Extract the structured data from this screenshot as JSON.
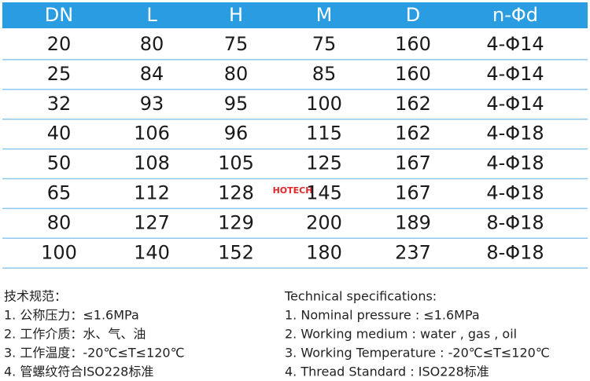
{
  "table": {
    "header": [
      "DN",
      "L",
      "H",
      "M",
      "D",
      "n-Φd"
    ],
    "rows": [
      [
        "20",
        "80",
        "75",
        "75",
        "160",
        "4-Φ14"
      ],
      [
        "25",
        "84",
        "80",
        "85",
        "160",
        "4-Φ14"
      ],
      [
        "32",
        "93",
        "95",
        "100",
        "162",
        "4-Φ14"
      ],
      [
        "40",
        "106",
        "96",
        "115",
        "162",
        "4-Φ18"
      ],
      [
        "50",
        "108",
        "105",
        "125",
        "167",
        "4-Φ18"
      ],
      [
        "65",
        "112",
        "128",
        "145",
        "167",
        "4-Φ18"
      ],
      [
        "80",
        "127",
        "129",
        "200",
        "189",
        "8-Φ18"
      ],
      [
        "100",
        "140",
        "152",
        "180",
        "237",
        "8-Φ18"
      ]
    ]
  },
  "watermark": "HOTECH",
  "specs_cn": {
    "title": "技术规范：",
    "items": [
      "1. 公称压力：≤1.6MPa",
      "2. 工作介质：水、气、油",
      "3. 工作温度：-20℃≤T≤120℃",
      "4. 管螺纹符合ISO228标准"
    ]
  },
  "specs_en": {
    "title": "Technical specifications:",
    "items": [
      "1. Nominal pressure : ≤1.6MPa",
      "2. Working medium : water , gas , oil",
      "3. Working Temperature : -20℃≤T≤120℃",
      "4. Thread Standard : ISO228标准"
    ]
  }
}
